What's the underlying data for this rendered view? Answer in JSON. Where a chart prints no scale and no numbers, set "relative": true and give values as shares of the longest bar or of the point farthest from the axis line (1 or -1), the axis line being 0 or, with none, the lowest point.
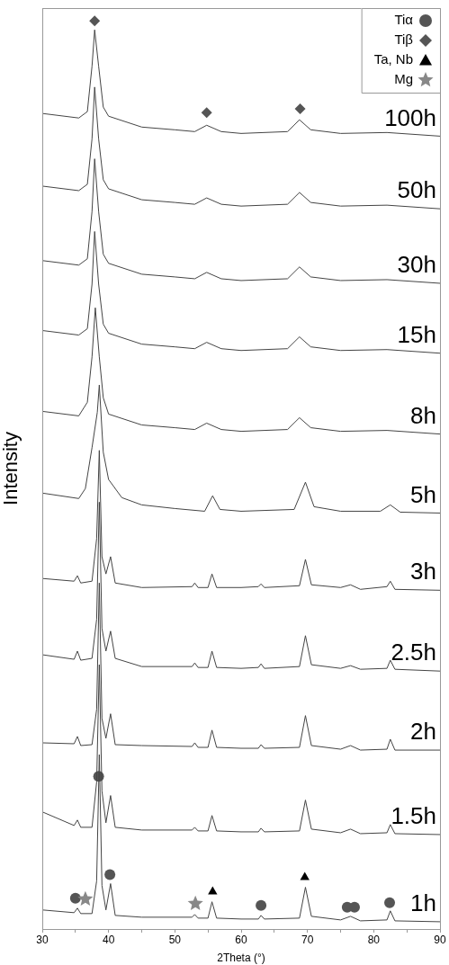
{
  "chart_data": {
    "type": "line",
    "xlabel": "2Theta (°)",
    "ylabel": "Intensity",
    "relative": true,
    "xlim": [
      30,
      90
    ],
    "xticks": [
      30,
      {
        "value": 35,
        "label": null
      },
      40,
      {
        "value": 45,
        "label": null
      },
      50,
      {
        "value": 55,
        "label": null
      },
      60,
      {
        "value": 65,
        "label": null
      },
      70,
      {
        "value": 75,
        "label": null
      },
      80,
      {
        "value": 85,
        "label": null
      },
      90
    ],
    "grid": false,
    "legend": "top right",
    "series": [
      {
        "name": "100h",
        "color": "#444444",
        "x": [
          30,
          35.5,
          36.8,
          37.5,
          37.9,
          38.5,
          39.2,
          40,
          45,
          50,
          53,
          54.8,
          57,
          60,
          67,
          68.8,
          70.5,
          75,
          82,
          90
        ],
        "values": [
          0.898,
          0.893,
          0.9,
          0.95,
          0.99,
          0.95,
          0.905,
          0.895,
          0.883,
          0.88,
          0.878,
          0.885,
          0.878,
          0.876,
          0.878,
          0.891,
          0.88,
          0.876,
          0.877,
          0.873
        ]
      },
      {
        "name": "50h",
        "color": "#444444",
        "x": [
          30,
          35.5,
          36.8,
          37.5,
          37.9,
          38.5,
          39.2,
          40,
          45,
          50,
          53,
          54.8,
          57,
          60,
          67,
          68.8,
          70.5,
          75,
          82,
          90
        ],
        "values": [
          0.818,
          0.813,
          0.82,
          0.87,
          0.927,
          0.87,
          0.825,
          0.815,
          0.803,
          0.8,
          0.798,
          0.805,
          0.798,
          0.796,
          0.798,
          0.811,
          0.8,
          0.796,
          0.797,
          0.793
        ]
      },
      {
        "name": "30h",
        "color": "#444444",
        "x": [
          30,
          35.5,
          36.8,
          37.5,
          37.9,
          38.5,
          39.2,
          40,
          45,
          50,
          53,
          54.8,
          57,
          60,
          67,
          68.8,
          70.5,
          75,
          82,
          90
        ],
        "values": [
          0.736,
          0.731,
          0.738,
          0.79,
          0.848,
          0.79,
          0.743,
          0.733,
          0.721,
          0.718,
          0.716,
          0.723,
          0.716,
          0.714,
          0.716,
          0.729,
          0.718,
          0.714,
          0.715,
          0.711
        ]
      },
      {
        "name": "15h",
        "color": "#444444",
        "x": [
          30,
          35.5,
          36.8,
          37.5,
          37.9,
          38.5,
          39.2,
          40,
          45,
          50,
          53,
          54.8,
          57,
          60,
          67,
          68.8,
          70.5,
          75,
          82,
          90
        ],
        "values": [
          0.659,
          0.654,
          0.661,
          0.71,
          0.768,
          0.71,
          0.666,
          0.656,
          0.644,
          0.641,
          0.639,
          0.646,
          0.639,
          0.637,
          0.639,
          0.652,
          0.641,
          0.637,
          0.638,
          0.634
        ]
      },
      {
        "name": "8h",
        "color": "#444444",
        "x": [
          30,
          35.5,
          36.8,
          37.5,
          38.0,
          38.6,
          39.2,
          40,
          45,
          50,
          53,
          54.8,
          57,
          60,
          67,
          68.8,
          70.5,
          75,
          82,
          90
        ],
        "values": [
          0.57,
          0.565,
          0.58,
          0.63,
          0.684,
          0.63,
          0.585,
          0.567,
          0.555,
          0.552,
          0.55,
          0.557,
          0.55,
          0.548,
          0.55,
          0.563,
          0.552,
          0.548,
          0.549,
          0.545
        ]
      },
      {
        "name": "5h",
        "color": "#444444",
        "x": [
          30,
          35.5,
          36.5,
          37.5,
          38.3,
          38.6,
          39.2,
          40,
          42,
          45,
          50,
          54.5,
          55.7,
          56.8,
          60,
          68,
          69.7,
          71,
          75,
          81,
          82.5,
          84,
          90
        ],
        "values": [
          0.48,
          0.474,
          0.485,
          0.53,
          0.569,
          0.599,
          0.525,
          0.495,
          0.475,
          0.467,
          0.463,
          0.46,
          0.477,
          0.462,
          0.46,
          0.462,
          0.492,
          0.465,
          0.46,
          0.46,
          0.467,
          0.459,
          0.458
        ]
      },
      {
        "name": "3h",
        "color": "#444444",
        "x": [
          30,
          34.8,
          35.3,
          35.8,
          37.5,
          38.2,
          38.6,
          39.0,
          39.6,
          40.3,
          41,
          45,
          52.6,
          53,
          53.5,
          55.0,
          55.6,
          56.3,
          60,
          62.6,
          63,
          63.5,
          68.8,
          69.7,
          70.6,
          75,
          76.5,
          78,
          82,
          82.5,
          83.2,
          90
        ],
        "values": [
          0.386,
          0.383,
          0.389,
          0.381,
          0.383,
          0.43,
          0.527,
          0.41,
          0.391,
          0.41,
          0.381,
          0.376,
          0.377,
          0.381,
          0.376,
          0.376,
          0.391,
          0.376,
          0.376,
          0.377,
          0.38,
          0.376,
          0.378,
          0.407,
          0.379,
          0.376,
          0.379,
          0.374,
          0.377,
          0.383,
          0.374,
          0.373
        ]
      },
      {
        "name": "2.5h",
        "color": "#444444",
        "x": [
          30,
          34.8,
          35.3,
          35.8,
          37.5,
          38.2,
          38.6,
          39.0,
          39.6,
          40.3,
          41,
          45,
          52.6,
          53,
          53.5,
          55.0,
          55.6,
          56.3,
          60,
          62.6,
          63,
          63.5,
          68.8,
          69.7,
          70.6,
          75,
          76.5,
          78,
          82,
          82.5,
          83.2,
          90
        ],
        "values": [
          0.302,
          0.297,
          0.306,
          0.296,
          0.298,
          0.341,
          0.47,
          0.331,
          0.306,
          0.328,
          0.298,
          0.289,
          0.289,
          0.293,
          0.288,
          0.288,
          0.306,
          0.288,
          0.287,
          0.288,
          0.292,
          0.287,
          0.289,
          0.323,
          0.291,
          0.287,
          0.29,
          0.286,
          0.287,
          0.296,
          0.286,
          0.284
        ]
      },
      {
        "name": "2h",
        "color": "#444444",
        "x": [
          30,
          34.8,
          35.3,
          35.8,
          37.5,
          38.2,
          38.6,
          39.0,
          39.6,
          40.3,
          41,
          45,
          52.6,
          53,
          53.5,
          55.0,
          55.6,
          56.3,
          60,
          62.6,
          63,
          63.5,
          68.8,
          69.7,
          70.6,
          75,
          76.5,
          78,
          82,
          82.5,
          83.2,
          90
        ],
        "values": [
          0.205,
          0.204,
          0.212,
          0.202,
          0.203,
          0.242,
          0.381,
          0.232,
          0.21,
          0.237,
          0.203,
          0.202,
          0.201,
          0.205,
          0.2,
          0.2,
          0.219,
          0.2,
          0.199,
          0.199,
          0.203,
          0.199,
          0.2,
          0.235,
          0.202,
          0.198,
          0.202,
          0.197,
          0.198,
          0.209,
          0.197,
          0.197
        ]
      },
      {
        "name": "1.5h",
        "color": "#444444",
        "x": [
          30,
          34.8,
          35.3,
          35.8,
          37.5,
          38.2,
          38.6,
          39.0,
          39.6,
          40.3,
          41,
          45,
          52.6,
          53,
          53.5,
          55.0,
          55.6,
          56.3,
          60,
          62.6,
          63,
          63.5,
          68.8,
          69.7,
          70.6,
          75,
          76.5,
          78,
          82,
          82.5,
          83.2,
          90
        ],
        "values": [
          0.129,
          0.114,
          0.12,
          0.112,
          0.112,
          0.162,
          0.291,
          0.152,
          0.117,
          0.147,
          0.112,
          0.109,
          0.109,
          0.112,
          0.108,
          0.108,
          0.125,
          0.108,
          0.107,
          0.107,
          0.111,
          0.107,
          0.108,
          0.142,
          0.11,
          0.106,
          0.11,
          0.105,
          0.106,
          0.115,
          0.105,
          0.104
        ]
      },
      {
        "name": "1h",
        "color": "#444444",
        "x": [
          30,
          34.8,
          35.3,
          35.8,
          37.5,
          38.2,
          38.6,
          39.0,
          39.6,
          40.3,
          41,
          45,
          52.6,
          53,
          53.5,
          55.0,
          55.6,
          56.3,
          60,
          62.6,
          63,
          63.5,
          68.8,
          69.7,
          70.6,
          75,
          76.5,
          78,
          82,
          82.5,
          83.2,
          90
        ],
        "values": [
          0.021,
          0.018,
          0.023,
          0.017,
          0.017,
          0.053,
          0.192,
          0.048,
          0.021,
          0.05,
          0.015,
          0.013,
          0.013,
          0.016,
          0.012,
          0.012,
          0.03,
          0.012,
          0.011,
          0.011,
          0.015,
          0.011,
          0.012,
          0.046,
          0.014,
          0.01,
          0.014,
          0.009,
          0.01,
          0.02,
          0.009,
          0.008
        ]
      },
      {
        "name": "Tiα",
        "type": "scatter",
        "marker": "circle",
        "color": "#555555",
        "x": [
          38.5,
          40.2,
          35,
          63,
          76,
          77.1,
          82.4
        ],
        "values": [
          0.168,
          0.06,
          0.034,
          0.026,
          0.024,
          0.024,
          0.029
        ]
      },
      {
        "name": "Tiβ",
        "type": "scatter",
        "marker": "diamond",
        "color": "#555555",
        "x": [
          37.9,
          54.8,
          68.9
        ],
        "values": [
          1.0,
          0.899,
          0.903
        ]
      },
      {
        "name": "Ta, Nb",
        "type": "scatter",
        "marker": "triangle",
        "color": "#000000",
        "x": [
          55.7,
          69.6
        ],
        "values": [
          0.041,
          0.057
        ]
      },
      {
        "name": "Mg",
        "type": "scatter",
        "marker": "star",
        "color": "#888888",
        "x": [
          36.5,
          53.1
        ],
        "values": [
          0.033,
          0.028
        ]
      }
    ]
  }
}
